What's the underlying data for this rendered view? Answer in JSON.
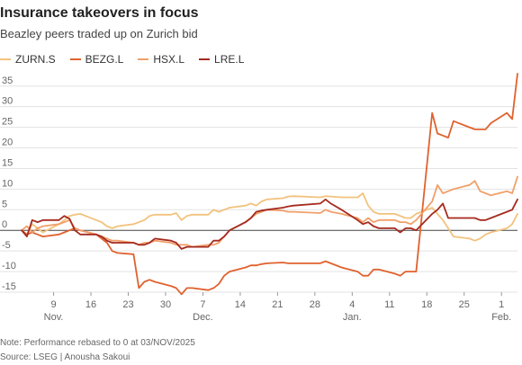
{
  "title": "Insurance takeovers in focus",
  "subtitle": "Beazley peers traded up on Zurich bid",
  "footnote": "Note: Performance rebased to 0 at 03/NOV/2025",
  "source": "Source: LSEG | Anousha Sakoui",
  "chart_data": {
    "type": "line",
    "title": "Insurance takeovers in focus",
    "subtitle": "Beazley peers traded up on Zurich bid",
    "xlabel": "",
    "ylabel": "",
    "ylim": [
      -15,
      38
    ],
    "y_ticks": [
      -15,
      -10,
      -5,
      0,
      5,
      10,
      15,
      20,
      25,
      30,
      35
    ],
    "grid": "horizontal",
    "legend_position": "top-left",
    "x_start": "2025-11-03",
    "x_end": "2026-02-04",
    "x_ticks": [
      {
        "date": "2025-11-09",
        "label": "9",
        "month": "Nov."
      },
      {
        "date": "2025-11-16",
        "label": "16",
        "month": ""
      },
      {
        "date": "2025-11-23",
        "label": "23",
        "month": ""
      },
      {
        "date": "2025-11-30",
        "label": "30",
        "month": ""
      },
      {
        "date": "2025-12-07",
        "label": "7",
        "month": "Dec."
      },
      {
        "date": "2025-12-14",
        "label": "14",
        "month": ""
      },
      {
        "date": "2025-12-21",
        "label": "21",
        "month": ""
      },
      {
        "date": "2025-12-28",
        "label": "28",
        "month": ""
      },
      {
        "date": "2026-01-04",
        "label": "4",
        "month": "Jan."
      },
      {
        "date": "2026-01-11",
        "label": "11",
        "month": ""
      },
      {
        "date": "2026-01-18",
        "label": "18",
        "month": ""
      },
      {
        "date": "2026-01-25",
        "label": "25",
        "month": ""
      },
      {
        "date": "2026-02-01",
        "label": "1",
        "month": "Feb."
      }
    ],
    "series": [
      {
        "name": "ZURN.S",
        "color": "#f2c27e",
        "points": [
          [
            "2025-11-03",
            0
          ],
          [
            "2025-11-04",
            -1
          ],
          [
            "2025-11-05",
            1.5
          ],
          [
            "2025-11-06",
            0.5
          ],
          [
            "2025-11-07",
            -0.5
          ],
          [
            "2025-11-10",
            1.5
          ],
          [
            "2025-11-11",
            2.5
          ],
          [
            "2025-11-12",
            3.5
          ],
          [
            "2025-11-13",
            3.8
          ],
          [
            "2025-11-14",
            4
          ],
          [
            "2025-11-17",
            2.5
          ],
          [
            "2025-11-18",
            2
          ],
          [
            "2025-11-19",
            1
          ],
          [
            "2025-11-20",
            0.5
          ],
          [
            "2025-11-21",
            1
          ],
          [
            "2025-11-24",
            1.5
          ],
          [
            "2025-11-25",
            2
          ],
          [
            "2025-11-26",
            2.5
          ],
          [
            "2025-11-27",
            3.5
          ],
          [
            "2025-11-28",
            3.8
          ],
          [
            "2025-12-01",
            3.8
          ],
          [
            "2025-12-02",
            4.2
          ],
          [
            "2025-12-03",
            2.5
          ],
          [
            "2025-12-04",
            3.5
          ],
          [
            "2025-12-05",
            3.8
          ],
          [
            "2025-12-08",
            3.8
          ],
          [
            "2025-12-09",
            5
          ],
          [
            "2025-12-10",
            4.5
          ],
          [
            "2025-12-11",
            5
          ],
          [
            "2025-12-12",
            5.5
          ],
          [
            "2025-12-15",
            6
          ],
          [
            "2025-12-16",
            6.5
          ],
          [
            "2025-12-17",
            6
          ],
          [
            "2025-12-18",
            7
          ],
          [
            "2025-12-19",
            7.5
          ],
          [
            "2025-12-22",
            7.8
          ],
          [
            "2025-12-23",
            8.2
          ],
          [
            "2025-12-24",
            8.3
          ],
          [
            "2025-12-29",
            8
          ],
          [
            "2025-12-30",
            8.3
          ],
          [
            "2025-12-31",
            8.2
          ],
          [
            "2026-01-02",
            8
          ],
          [
            "2026-01-05",
            8
          ],
          [
            "2026-01-06",
            9
          ],
          [
            "2026-01-07",
            6
          ],
          [
            "2026-01-08",
            4.5
          ],
          [
            "2026-01-09",
            4
          ],
          [
            "2026-01-12",
            4
          ],
          [
            "2026-01-13",
            3.5
          ],
          [
            "2026-01-14",
            3
          ],
          [
            "2026-01-15",
            3
          ],
          [
            "2026-01-16",
            4
          ],
          [
            "2026-01-19",
            5.5
          ],
          [
            "2026-01-20",
            4
          ],
          [
            "2026-01-21",
            2.5
          ],
          [
            "2026-01-22",
            0.5
          ],
          [
            "2026-01-23",
            -1.5
          ],
          [
            "2026-01-26",
            -2
          ],
          [
            "2026-01-27",
            -2.5
          ],
          [
            "2026-01-28",
            -2
          ],
          [
            "2026-01-29",
            -1
          ],
          [
            "2026-01-30",
            -0.5
          ],
          [
            "2026-02-02",
            0.5
          ],
          [
            "2026-02-03",
            1.5
          ],
          [
            "2026-02-04",
            4
          ]
        ]
      },
      {
        "name": "BEZG.L",
        "color": "#e0622e",
        "points": [
          [
            "2025-11-03",
            0
          ],
          [
            "2025-11-04",
            -1
          ],
          [
            "2025-11-05",
            -0.5
          ],
          [
            "2025-11-06",
            -1
          ],
          [
            "2025-11-07",
            -1.5
          ],
          [
            "2025-11-10",
            -1
          ],
          [
            "2025-11-11",
            -0.5
          ],
          [
            "2025-11-12",
            0
          ],
          [
            "2025-11-13",
            0.5
          ],
          [
            "2025-11-14",
            0
          ],
          [
            "2025-11-17",
            -1
          ],
          [
            "2025-11-18",
            -2
          ],
          [
            "2025-11-19",
            -3
          ],
          [
            "2025-11-20",
            -5
          ],
          [
            "2025-11-21",
            -5.5
          ],
          [
            "2025-11-24",
            -5.8
          ],
          [
            "2025-11-25",
            -14
          ],
          [
            "2025-11-26",
            -12.5
          ],
          [
            "2025-11-27",
            -12
          ],
          [
            "2025-11-28",
            -12.5
          ],
          [
            "2025-12-01",
            -13.5
          ],
          [
            "2025-12-02",
            -14
          ],
          [
            "2025-12-03",
            -15.5
          ],
          [
            "2025-12-04",
            -14
          ],
          [
            "2025-12-05",
            -14
          ],
          [
            "2025-12-08",
            -14.5
          ],
          [
            "2025-12-09",
            -14
          ],
          [
            "2025-12-10",
            -13
          ],
          [
            "2025-12-11",
            -11
          ],
          [
            "2025-12-12",
            -10
          ],
          [
            "2025-12-15",
            -9
          ],
          [
            "2025-12-16",
            -8.5
          ],
          [
            "2025-12-17",
            -8.5
          ],
          [
            "2025-12-18",
            -8.2
          ],
          [
            "2025-12-19",
            -8
          ],
          [
            "2025-12-22",
            -7.8
          ],
          [
            "2025-12-23",
            -8
          ],
          [
            "2025-12-24",
            -8
          ],
          [
            "2025-12-29",
            -8
          ],
          [
            "2025-12-30",
            -7.5
          ],
          [
            "2025-12-31",
            -8
          ],
          [
            "2026-01-02",
            -9
          ],
          [
            "2026-01-05",
            -10
          ],
          [
            "2026-01-06",
            -11
          ],
          [
            "2026-01-07",
            -11
          ],
          [
            "2026-01-08",
            -9.5
          ],
          [
            "2026-01-09",
            -9.5
          ],
          [
            "2026-01-12",
            -10.5
          ],
          [
            "2026-01-13",
            -11
          ],
          [
            "2026-01-14",
            -10
          ],
          [
            "2026-01-15",
            -10
          ],
          [
            "2026-01-16",
            -10
          ],
          [
            "2026-01-19",
            28.5
          ],
          [
            "2026-01-20",
            23.5
          ],
          [
            "2026-01-21",
            23
          ],
          [
            "2026-01-22",
            22.5
          ],
          [
            "2026-01-23",
            26.5
          ],
          [
            "2026-01-26",
            25
          ],
          [
            "2026-01-27",
            24.5
          ],
          [
            "2026-01-28",
            24.5
          ],
          [
            "2026-01-29",
            24.5
          ],
          [
            "2026-01-30",
            26
          ],
          [
            "2026-02-02",
            28.5
          ],
          [
            "2026-02-03",
            27
          ],
          [
            "2026-02-04",
            38
          ]
        ]
      },
      {
        "name": "HSX.L",
        "color": "#f0a06a",
        "points": [
          [
            "2025-11-03",
            0
          ],
          [
            "2025-11-04",
            1
          ],
          [
            "2025-11-05",
            -0.5
          ],
          [
            "2025-11-06",
            0.5
          ],
          [
            "2025-11-07",
            1
          ],
          [
            "2025-11-10",
            1.5
          ],
          [
            "2025-11-11",
            2
          ],
          [
            "2025-11-12",
            2.5
          ],
          [
            "2025-11-13",
            0.5
          ],
          [
            "2025-11-14",
            0
          ],
          [
            "2025-11-17",
            -1
          ],
          [
            "2025-11-18",
            -1.5
          ],
          [
            "2025-11-19",
            -2
          ],
          [
            "2025-11-20",
            -2.5
          ],
          [
            "2025-11-21",
            -2.5
          ],
          [
            "2025-11-24",
            -3
          ],
          [
            "2025-11-25",
            -3.5
          ],
          [
            "2025-11-26",
            -3
          ],
          [
            "2025-11-27",
            -3
          ],
          [
            "2025-11-28",
            -2.5
          ],
          [
            "2025-12-01",
            -3
          ],
          [
            "2025-12-02",
            -3.5
          ],
          [
            "2025-12-03",
            -3.5
          ],
          [
            "2025-12-04",
            -3.5
          ],
          [
            "2025-12-05",
            -4
          ],
          [
            "2025-12-08",
            -3.5
          ],
          [
            "2025-12-09",
            -3.5
          ],
          [
            "2025-12-10",
            -3
          ],
          [
            "2025-12-11",
            -1.5
          ],
          [
            "2025-12-12",
            0
          ],
          [
            "2025-12-15",
            2
          ],
          [
            "2025-12-16",
            3
          ],
          [
            "2025-12-17",
            4
          ],
          [
            "2025-12-18",
            4.5
          ],
          [
            "2025-12-19",
            5
          ],
          [
            "2025-12-22",
            4.8
          ],
          [
            "2025-12-23",
            4.5
          ],
          [
            "2025-12-24",
            4.5
          ],
          [
            "2025-12-29",
            4.2
          ],
          [
            "2025-12-30",
            5
          ],
          [
            "2025-12-31",
            4.5
          ],
          [
            "2026-01-02",
            4
          ],
          [
            "2026-01-05",
            3
          ],
          [
            "2026-01-06",
            2
          ],
          [
            "2026-01-07",
            3
          ],
          [
            "2026-01-08",
            2
          ],
          [
            "2026-01-09",
            2.5
          ],
          [
            "2026-01-12",
            2.5
          ],
          [
            "2026-01-13",
            2
          ],
          [
            "2026-01-14",
            2
          ],
          [
            "2026-01-15",
            1.5
          ],
          [
            "2026-01-16",
            2.5
          ],
          [
            "2026-01-19",
            7
          ],
          [
            "2026-01-20",
            11
          ],
          [
            "2026-01-21",
            9
          ],
          [
            "2026-01-22",
            9.5
          ],
          [
            "2026-01-23",
            10
          ],
          [
            "2026-01-26",
            11
          ],
          [
            "2026-01-27",
            12
          ],
          [
            "2026-01-28",
            9.5
          ],
          [
            "2026-01-29",
            9
          ],
          [
            "2026-01-30",
            8.5
          ],
          [
            "2026-02-02",
            9.5
          ],
          [
            "2026-02-03",
            9
          ],
          [
            "2026-02-04",
            13
          ]
        ]
      },
      {
        "name": "LRE.L",
        "color": "#a52a1f",
        "points": [
          [
            "2025-11-03",
            0
          ],
          [
            "2025-11-04",
            -1.5
          ],
          [
            "2025-11-05",
            2.5
          ],
          [
            "2025-11-06",
            2
          ],
          [
            "2025-11-07",
            2.5
          ],
          [
            "2025-11-10",
            2.5
          ],
          [
            "2025-11-11",
            3.5
          ],
          [
            "2025-11-12",
            2.8
          ],
          [
            "2025-11-13",
            0
          ],
          [
            "2025-11-14",
            -1
          ],
          [
            "2025-11-17",
            -1
          ],
          [
            "2025-11-18",
            -1.5
          ],
          [
            "2025-11-19",
            -2.5
          ],
          [
            "2025-11-20",
            -3
          ],
          [
            "2025-11-21",
            -3
          ],
          [
            "2025-11-24",
            -3
          ],
          [
            "2025-11-25",
            -3.5
          ],
          [
            "2025-11-26",
            -3.5
          ],
          [
            "2025-11-27",
            -3
          ],
          [
            "2025-11-28",
            -2
          ],
          [
            "2025-12-01",
            -2.5
          ],
          [
            "2025-12-02",
            -3
          ],
          [
            "2025-12-03",
            -4.5
          ],
          [
            "2025-12-04",
            -4
          ],
          [
            "2025-12-05",
            -4
          ],
          [
            "2025-12-08",
            -4
          ],
          [
            "2025-12-09",
            -2.5
          ],
          [
            "2025-12-10",
            -2.5
          ],
          [
            "2025-12-11",
            -1.5
          ],
          [
            "2025-12-12",
            0
          ],
          [
            "2025-12-15",
            2
          ],
          [
            "2025-12-16",
            3
          ],
          [
            "2025-12-17",
            4.5
          ],
          [
            "2025-12-18",
            4.8
          ],
          [
            "2025-12-19",
            5
          ],
          [
            "2025-12-22",
            5.5
          ],
          [
            "2025-12-23",
            5.8
          ],
          [
            "2025-12-24",
            6
          ],
          [
            "2025-12-29",
            6.5
          ],
          [
            "2025-12-30",
            7.5
          ],
          [
            "2025-12-31",
            6.5
          ],
          [
            "2026-01-02",
            5
          ],
          [
            "2026-01-05",
            2.5
          ],
          [
            "2026-01-06",
            1.5
          ],
          [
            "2026-01-07",
            2
          ],
          [
            "2026-01-08",
            1
          ],
          [
            "2026-01-09",
            0.5
          ],
          [
            "2026-01-12",
            0.5
          ],
          [
            "2026-01-13",
            -0.5
          ],
          [
            "2026-01-14",
            0.5
          ],
          [
            "2026-01-15",
            0.5
          ],
          [
            "2026-01-16",
            0
          ],
          [
            "2026-01-19",
            4
          ],
          [
            "2026-01-20",
            5
          ],
          [
            "2026-01-21",
            6.5
          ],
          [
            "2026-01-22",
            3
          ],
          [
            "2026-01-23",
            3
          ],
          [
            "2026-01-26",
            3
          ],
          [
            "2026-01-27",
            3
          ],
          [
            "2026-01-28",
            2.5
          ],
          [
            "2026-01-29",
            2.5
          ],
          [
            "2026-01-30",
            3
          ],
          [
            "2026-02-02",
            4.5
          ],
          [
            "2026-02-03",
            5
          ],
          [
            "2026-02-04",
            7.5
          ]
        ]
      }
    ]
  }
}
